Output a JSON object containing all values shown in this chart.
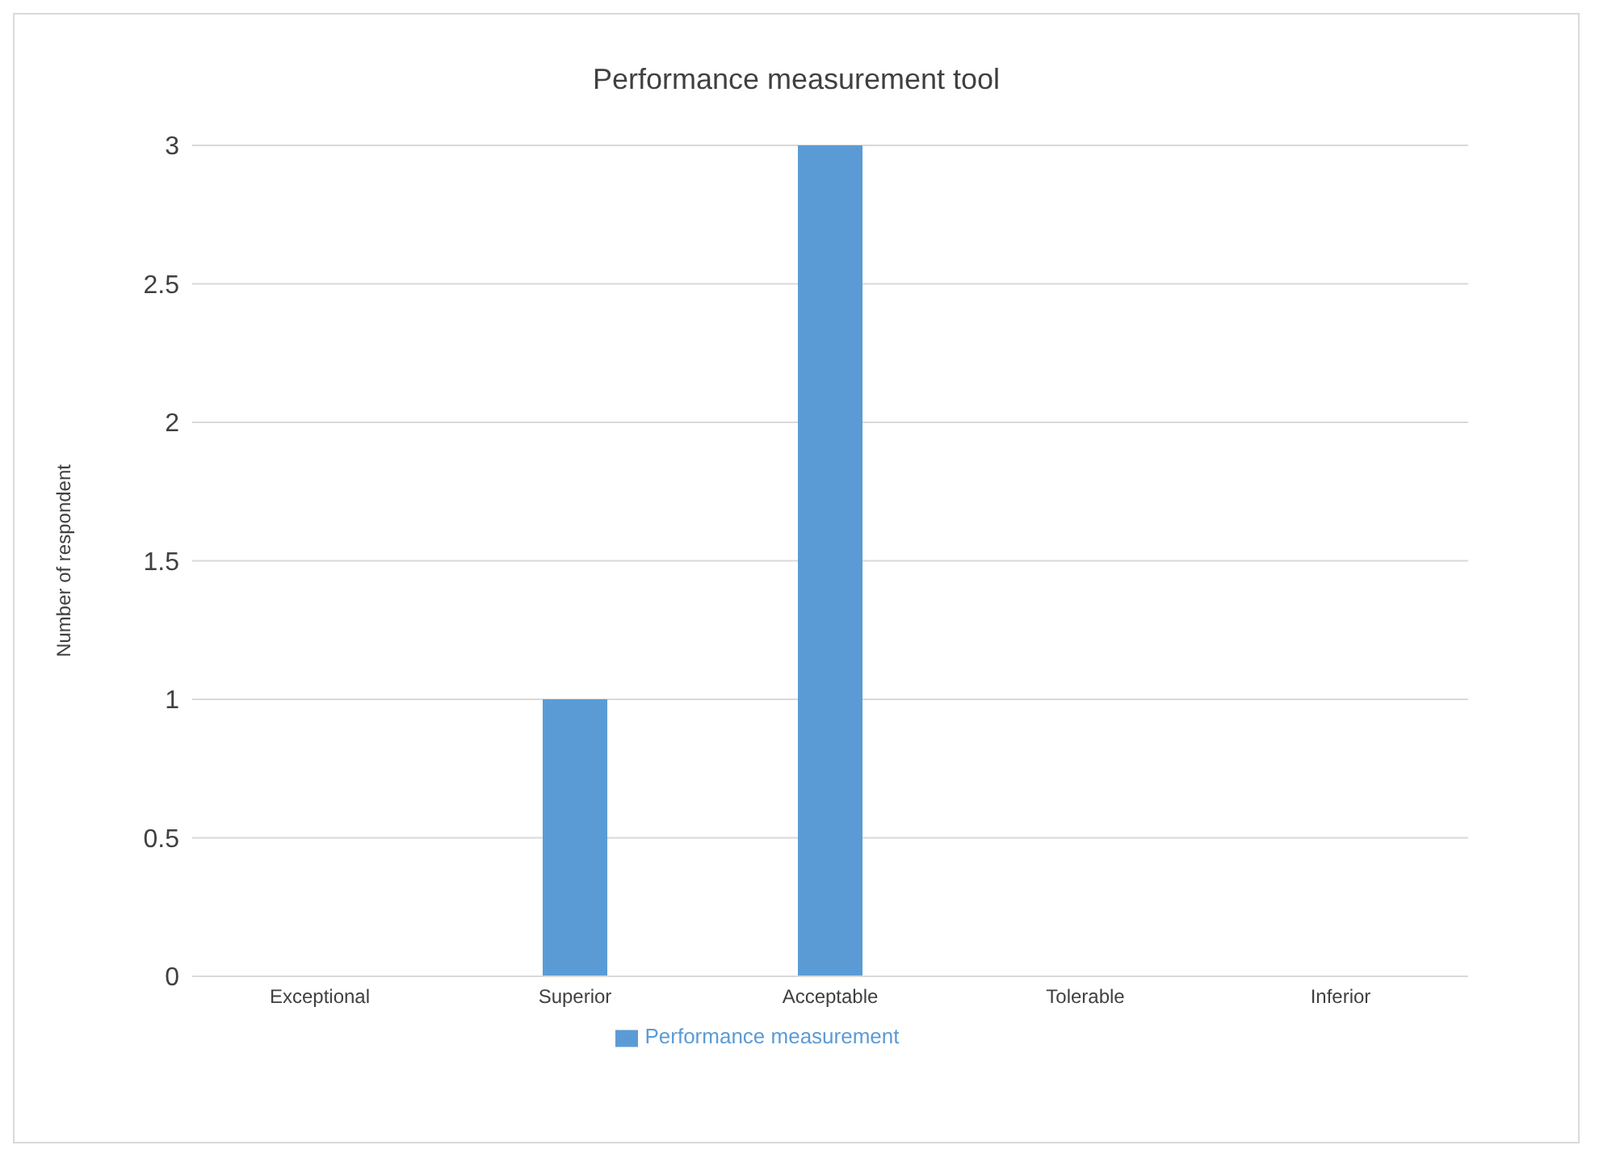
{
  "chart_data": {
    "type": "bar",
    "title": "Performance measurement tool",
    "ylabel": "Number of respondent",
    "categories": [
      "Exceptional",
      "Superior",
      "Acceptable",
      "Tolerable",
      "Inferior"
    ],
    "series": [
      {
        "name": "Performance measurement",
        "color": "#5b9bd5",
        "values": [
          0,
          1,
          3,
          0,
          0
        ]
      }
    ],
    "ylim": [
      0,
      3
    ],
    "yticks": [
      0,
      0.5,
      1,
      1.5,
      2,
      2.5,
      3
    ],
    "grid": "y",
    "legend": "bottom"
  }
}
